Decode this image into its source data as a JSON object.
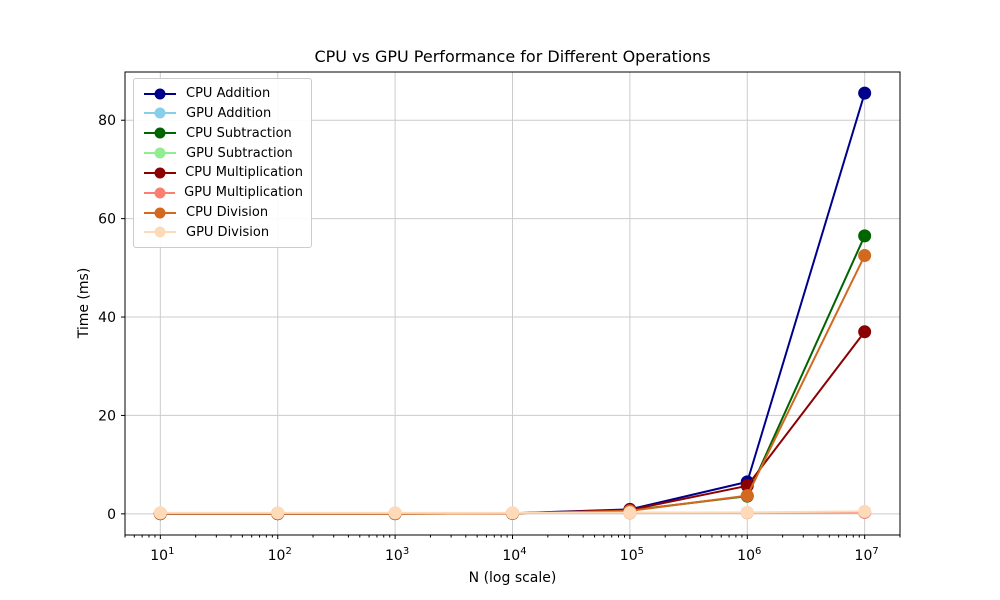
{
  "chart_data": {
    "type": "line",
    "title": "CPU vs GPU Performance for Different Operations",
    "xlabel": "N (log scale)",
    "ylabel": "Time (ms)",
    "xscale": "log",
    "x": [
      10,
      100,
      1000,
      10000,
      100000,
      1000000,
      10000000
    ],
    "x_tick_labels": [
      "10^1",
      "10^2",
      "10^3",
      "10^4",
      "10^5",
      "10^6",
      "10^7"
    ],
    "y_ticks": [
      0,
      20,
      40,
      60,
      80
    ],
    "xlim": [
      5.0,
      20000000
    ],
    "ylim": [
      -4.3,
      89.8
    ],
    "grid": true,
    "grid_color": "#cccccc",
    "axis_color": "#000000",
    "legend_position": "upper-left",
    "series": [
      {
        "name": "CPU Addition",
        "color": "#00008b",
        "values": [
          0.05,
          0.05,
          0.06,
          0.12,
          0.9,
          6.5,
          85.5
        ]
      },
      {
        "name": "GPU Addition",
        "color": "#87ceeb",
        "values": [
          0.15,
          0.15,
          0.15,
          0.16,
          0.2,
          0.25,
          0.3
        ]
      },
      {
        "name": "CPU Subtraction",
        "color": "#006400",
        "values": [
          0.04,
          0.04,
          0.05,
          0.1,
          0.7,
          3.6,
          56.5
        ]
      },
      {
        "name": "GPU Subtraction",
        "color": "#90ee90",
        "values": [
          0.15,
          0.15,
          0.15,
          0.16,
          0.2,
          0.25,
          0.3
        ]
      },
      {
        "name": "CPU Multiplication",
        "color": "#8b0000",
        "values": [
          0.04,
          0.04,
          0.05,
          0.1,
          0.8,
          5.7,
          37.0
        ]
      },
      {
        "name": "GPU Multiplication",
        "color": "#fa8072",
        "values": [
          0.15,
          0.15,
          0.15,
          0.16,
          0.2,
          0.25,
          0.3
        ]
      },
      {
        "name": "CPU Division",
        "color": "#d2691e",
        "values": [
          0.04,
          0.04,
          0.05,
          0.1,
          0.6,
          3.7,
          52.5
        ]
      },
      {
        "name": "GPU Division",
        "color": "#ffdab9",
        "values": [
          0.2,
          0.2,
          0.2,
          0.2,
          0.25,
          0.3,
          0.5
        ]
      }
    ]
  }
}
